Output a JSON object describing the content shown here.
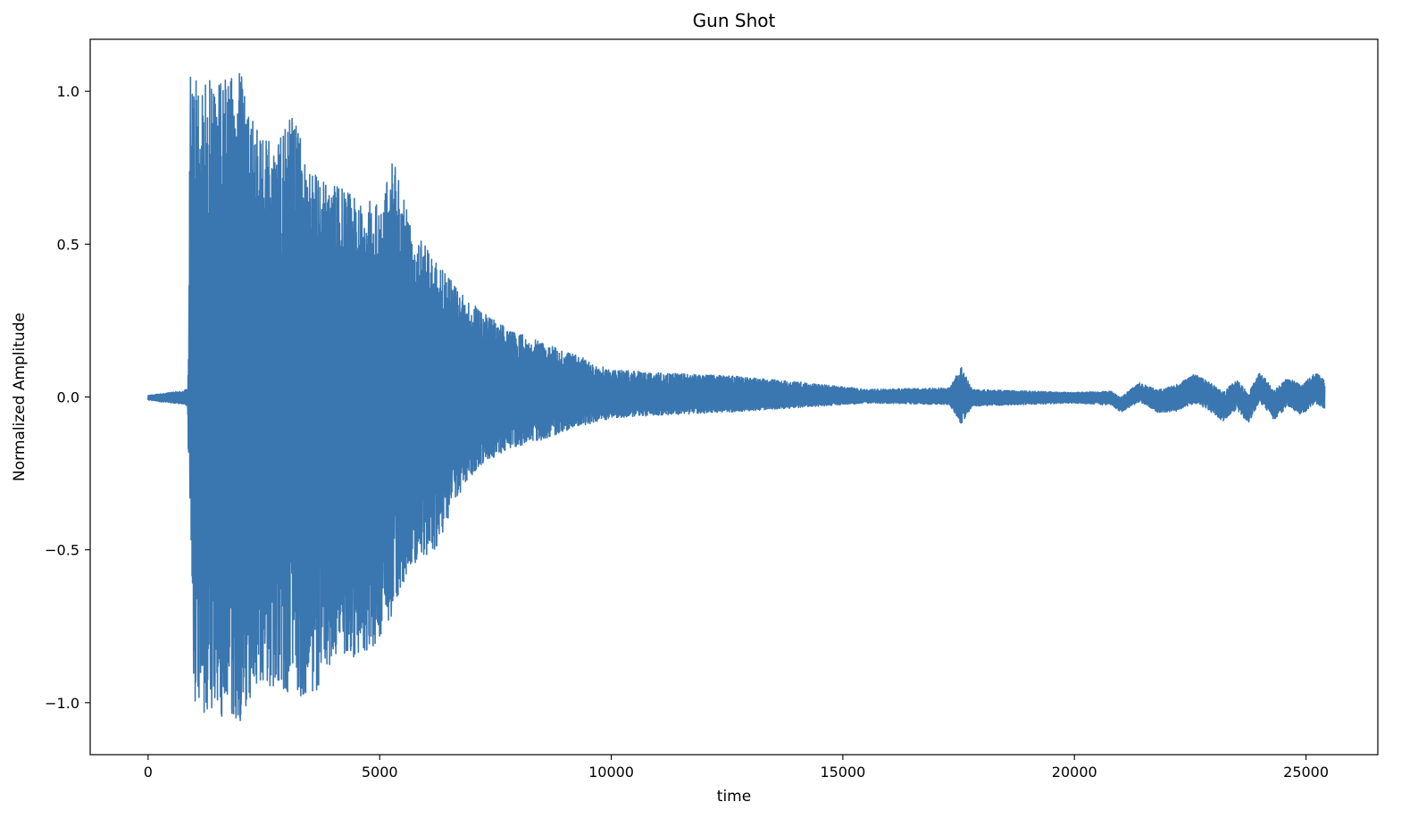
{
  "chart_data": {
    "type": "line",
    "title": "Gun Shot",
    "xlabel": "time",
    "ylabel": "Normalized Amplitude",
    "xlim": [
      -1250,
      26550
    ],
    "ylim": [
      -1.17,
      1.17
    ],
    "x_ticks": [
      0,
      5000,
      10000,
      15000,
      20000,
      25000
    ],
    "x_tick_labels": [
      "0",
      "5000",
      "10000",
      "15000",
      "20000",
      "25000"
    ],
    "y_ticks": [
      1.0,
      0.5,
      0.0,
      -0.5,
      -1.0
    ],
    "y_tick_labels": [
      "1.0",
      "0.5",
      "0.0",
      "−0.5",
      "−1.0"
    ],
    "grid": false,
    "legend": "none",
    "series": [
      {
        "color": "#3a76af",
        "x_range": [
          0,
          25400
        ],
        "envelope": [
          {
            "x": 0,
            "max": 0.005,
            "min": -0.01
          },
          {
            "x": 750,
            "max": 0.02,
            "min": -0.025
          },
          {
            "x": 850,
            "max": 0.03,
            "min": -0.03
          },
          {
            "x": 880,
            "max": 0.25,
            "min": -0.3
          },
          {
            "x": 900,
            "max": 1.05,
            "min": -0.3
          },
          {
            "x": 1000,
            "max": 1.05,
            "min": -1.03
          },
          {
            "x": 1500,
            "max": 1.05,
            "min": -1.05
          },
          {
            "x": 2000,
            "max": 1.06,
            "min": -1.06
          },
          {
            "x": 2300,
            "max": 0.88,
            "min": -0.95
          },
          {
            "x": 2800,
            "max": 0.82,
            "min": -0.95
          },
          {
            "x": 3100,
            "max": 0.95,
            "min": -0.98
          },
          {
            "x": 3500,
            "max": 0.75,
            "min": -1.0
          },
          {
            "x": 4000,
            "max": 0.7,
            "min": -0.85
          },
          {
            "x": 4500,
            "max": 0.66,
            "min": -0.85
          },
          {
            "x": 5000,
            "max": 0.64,
            "min": -0.8
          },
          {
            "x": 5300,
            "max": 0.8,
            "min": -0.7
          },
          {
            "x": 5700,
            "max": 0.55,
            "min": -0.55
          },
          {
            "x": 6200,
            "max": 0.45,
            "min": -0.5
          },
          {
            "x": 6700,
            "max": 0.35,
            "min": -0.32
          },
          {
            "x": 7200,
            "max": 0.28,
            "min": -0.22
          },
          {
            "x": 7800,
            "max": 0.22,
            "min": -0.17
          },
          {
            "x": 8500,
            "max": 0.18,
            "min": -0.14
          },
          {
            "x": 9200,
            "max": 0.14,
            "min": -0.1
          },
          {
            "x": 10000,
            "max": 0.09,
            "min": -0.07
          },
          {
            "x": 11000,
            "max": 0.08,
            "min": -0.06
          },
          {
            "x": 12500,
            "max": 0.07,
            "min": -0.05
          },
          {
            "x": 14000,
            "max": 0.05,
            "min": -0.035
          },
          {
            "x": 15500,
            "max": 0.025,
            "min": -0.02
          },
          {
            "x": 17300,
            "max": 0.03,
            "min": -0.025
          },
          {
            "x": 17550,
            "max": 0.1,
            "min": -0.09
          },
          {
            "x": 17800,
            "max": 0.025,
            "min": -0.03
          },
          {
            "x": 20000,
            "max": 0.015,
            "min": -0.02
          },
          {
            "x": 21000,
            "max": 0.02,
            "min": -0.03
          },
          {
            "x": 22500,
            "max": 0.045,
            "min": -0.05
          },
          {
            "x": 25400,
            "max": 0.05,
            "min": -0.05
          }
        ],
        "low_frequency_tail": [
          {
            "x": 20800,
            "y": 0.0
          },
          {
            "x": 21000,
            "y": -0.02
          },
          {
            "x": 21400,
            "y": 0.02
          },
          {
            "x": 21800,
            "y": -0.01
          },
          {
            "x": 22200,
            "y": 0.0
          },
          {
            "x": 22600,
            "y": 0.03
          },
          {
            "x": 22900,
            "y": 0.005
          },
          {
            "x": 23200,
            "y": -0.03
          },
          {
            "x": 23500,
            "y": 0.01
          },
          {
            "x": 23750,
            "y": -0.035
          },
          {
            "x": 24000,
            "y": 0.035
          },
          {
            "x": 24300,
            "y": -0.025
          },
          {
            "x": 24600,
            "y": 0.015
          },
          {
            "x": 24900,
            "y": -0.01
          },
          {
            "x": 25200,
            "y": 0.03
          },
          {
            "x": 25400,
            "y": 0.01
          }
        ]
      }
    ]
  }
}
